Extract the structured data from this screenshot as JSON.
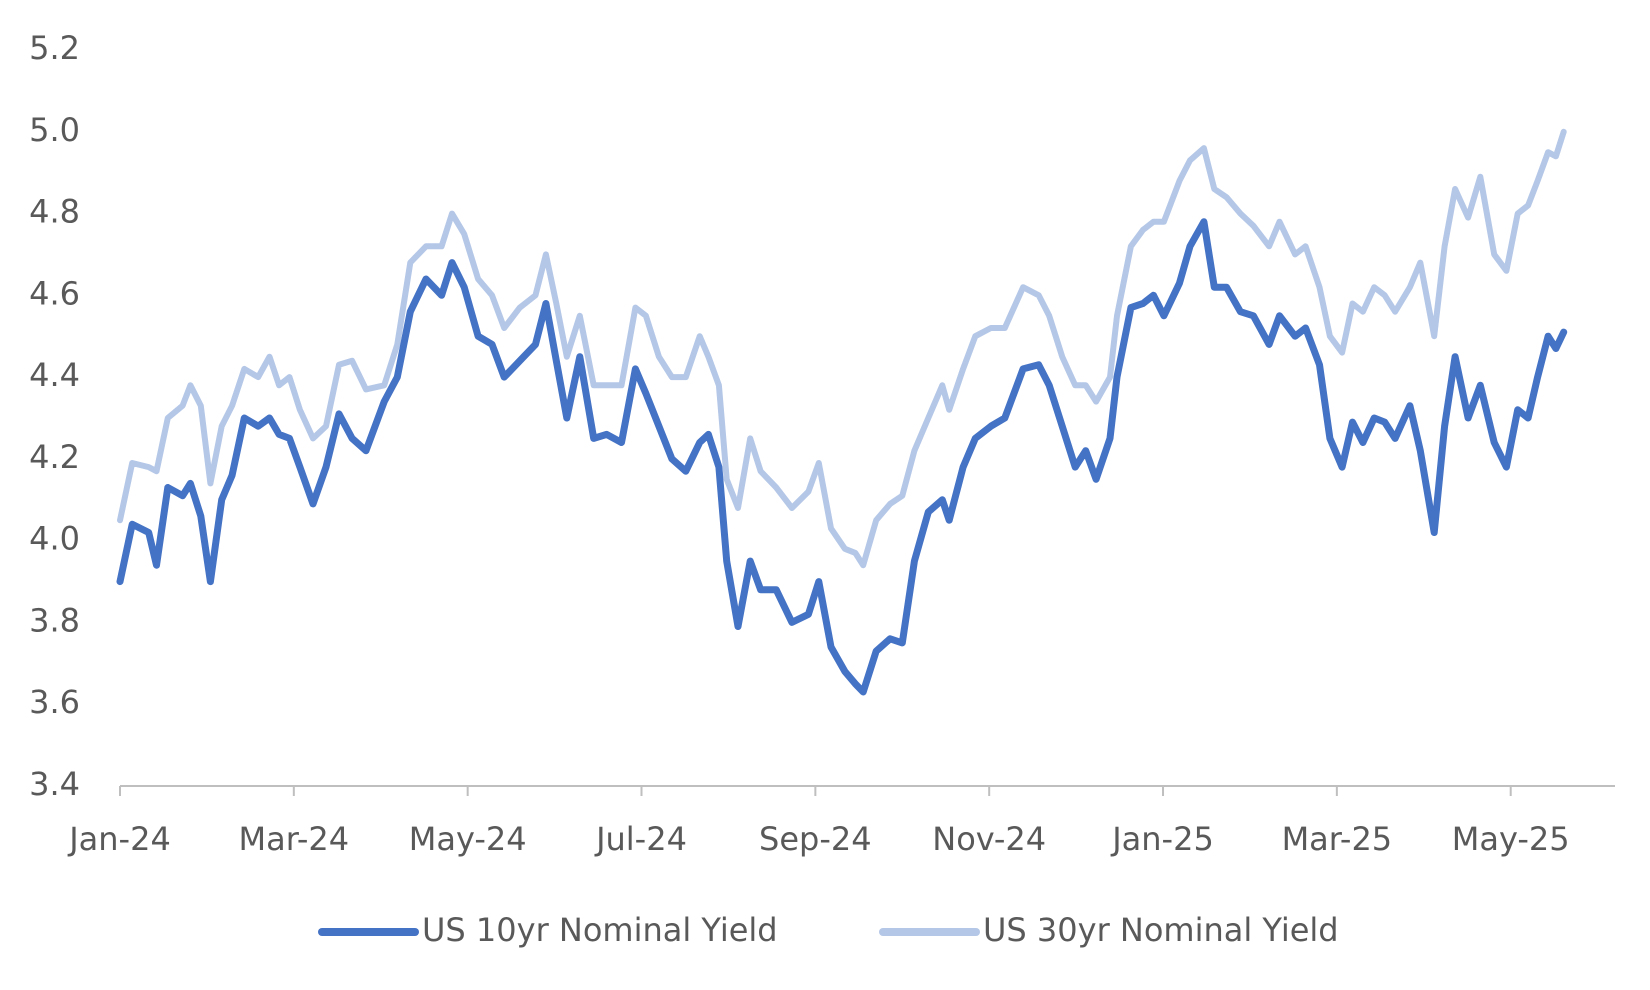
{
  "chart_data": {
    "type": "line",
    "x": [
      0,
      0.14,
      0.33,
      0.42,
      0.55,
      0.72,
      0.81,
      0.93,
      1.04,
      1.17,
      1.29,
      1.43,
      1.59,
      1.72,
      1.83,
      1.95,
      2.07,
      2.22,
      2.37,
      2.52,
      2.67,
      2.83,
      3.04,
      3.19,
      3.34,
      3.52,
      3.7,
      3.82,
      3.96,
      4.12,
      4.28,
      4.42,
      4.6,
      4.78,
      4.9,
      5.02,
      5.14,
      5.29,
      5.45,
      5.6,
      5.77,
      5.93,
      6.05,
      6.2,
      6.35,
      6.51,
      6.67,
      6.77,
      6.89,
      6.98,
      7.11,
      7.25,
      7.37,
      7.55,
      7.73,
      7.92,
      8.04,
      8.18,
      8.34,
      8.46,
      8.55,
      8.7,
      8.86,
      9.0,
      9.14,
      9.3,
      9.46,
      9.54,
      9.7,
      9.84,
      10.02,
      10.18,
      10.39,
      10.57,
      10.69,
      10.84,
      10.99,
      11.11,
      11.23,
      11.39,
      11.47,
      11.63,
      11.77,
      11.89,
      12.01,
      12.19,
      12.31,
      12.47,
      12.59,
      12.73,
      12.89,
      13.04,
      13.22,
      13.34,
      13.52,
      13.64,
      13.8,
      13.92,
      14.06,
      14.18,
      14.3,
      14.43,
      14.55,
      14.67,
      14.84,
      14.96,
      15.12,
      15.24,
      15.36,
      15.51,
      15.65,
      15.81,
      15.95,
      16.08,
      16.2,
      16.31,
      16.43,
      16.52,
      16.61
    ],
    "series": [
      {
        "name": "US 10yr Nominal Yield",
        "color": "#4472c4",
        "values": [
          3.9,
          4.04,
          4.02,
          3.94,
          4.13,
          4.11,
          4.14,
          4.06,
          3.9,
          4.1,
          4.16,
          4.3,
          4.28,
          4.3,
          4.26,
          4.25,
          4.18,
          4.09,
          4.18,
          4.31,
          4.25,
          4.22,
          4.34,
          4.4,
          4.56,
          4.64,
          4.6,
          4.68,
          4.62,
          4.5,
          4.48,
          4.4,
          4.44,
          4.48,
          4.58,
          4.44,
          4.3,
          4.45,
          4.25,
          4.26,
          4.24,
          4.42,
          4.36,
          4.28,
          4.2,
          4.17,
          4.24,
          4.26,
          4.18,
          3.95,
          3.79,
          3.95,
          3.88,
          3.88,
          3.8,
          3.82,
          3.9,
          3.74,
          3.68,
          3.65,
          3.63,
          3.73,
          3.76,
          3.75,
          3.95,
          4.07,
          4.1,
          4.05,
          4.18,
          4.25,
          4.28,
          4.3,
          4.42,
          4.43,
          4.38,
          4.28,
          4.18,
          4.22,
          4.15,
          4.25,
          4.4,
          4.57,
          4.58,
          4.6,
          4.55,
          4.63,
          4.72,
          4.78,
          4.62,
          4.62,
          4.56,
          4.55,
          4.48,
          4.55,
          4.5,
          4.52,
          4.43,
          4.25,
          4.18,
          4.29,
          4.24,
          4.3,
          4.29,
          4.25,
          4.33,
          4.22,
          4.02,
          4.28,
          4.45,
          4.3,
          4.38,
          4.24,
          4.18,
          4.32,
          4.3,
          4.4,
          4.5,
          4.47,
          4.51
        ]
      },
      {
        "name": "US 30yr Nominal Yield",
        "color": "#b4c7e7",
        "values": [
          4.05,
          4.19,
          4.18,
          4.17,
          4.3,
          4.33,
          4.38,
          4.33,
          4.14,
          4.28,
          4.33,
          4.42,
          4.4,
          4.45,
          4.38,
          4.4,
          4.32,
          4.25,
          4.28,
          4.43,
          4.44,
          4.37,
          4.38,
          4.48,
          4.68,
          4.72,
          4.72,
          4.8,
          4.75,
          4.64,
          4.6,
          4.52,
          4.57,
          4.6,
          4.7,
          4.58,
          4.45,
          4.55,
          4.38,
          4.38,
          4.38,
          4.57,
          4.55,
          4.45,
          4.4,
          4.4,
          4.5,
          4.45,
          4.38,
          4.15,
          4.08,
          4.25,
          4.17,
          4.13,
          4.08,
          4.12,
          4.19,
          4.03,
          3.98,
          3.97,
          3.94,
          4.05,
          4.09,
          4.11,
          4.22,
          4.3,
          4.38,
          4.32,
          4.42,
          4.5,
          4.52,
          4.52,
          4.62,
          4.6,
          4.55,
          4.45,
          4.38,
          4.38,
          4.34,
          4.4,
          4.55,
          4.72,
          4.76,
          4.78,
          4.78,
          4.88,
          4.93,
          4.96,
          4.86,
          4.84,
          4.8,
          4.77,
          4.72,
          4.78,
          4.7,
          4.72,
          4.62,
          4.5,
          4.46,
          4.58,
          4.56,
          4.62,
          4.6,
          4.56,
          4.62,
          4.68,
          4.5,
          4.72,
          4.86,
          4.79,
          4.89,
          4.7,
          4.66,
          4.8,
          4.82,
          4.88,
          4.95,
          4.94,
          5.0
        ]
      }
    ],
    "xlim": [
      0,
      17.2
    ],
    "xticks": [
      {
        "value": 0,
        "label": "Jan-24"
      },
      {
        "value": 2,
        "label": "Mar-24"
      },
      {
        "value": 4,
        "label": "May-24"
      },
      {
        "value": 6,
        "label": "Jul-24"
      },
      {
        "value": 8,
        "label": "Sep-24"
      },
      {
        "value": 10,
        "label": "Nov-24"
      },
      {
        "value": 12,
        "label": "Jan-25"
      },
      {
        "value": 14,
        "label": "Mar-25"
      },
      {
        "value": 16,
        "label": "May-25"
      }
    ],
    "ylim": [
      3.4,
      5.2
    ],
    "yticks": [
      3.4,
      3.6,
      3.8,
      {
        "value": 4,
        "label": "4.0"
      },
      4.2,
      4.4,
      4.6,
      4.8,
      {
        "value": 5,
        "label": "5.0"
      },
      5.2
    ],
    "grid": false,
    "legend": "bottom"
  }
}
